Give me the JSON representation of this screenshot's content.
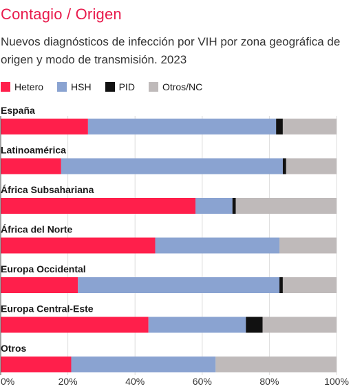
{
  "chart_data": {
    "type": "bar",
    "orientation": "horizontal",
    "stacked": true,
    "title": "Contagio / Origen",
    "subtitle": "Nuevos diagnósticos de infección por VIH por zona geográfica de origen y modo de transmisión. 2023",
    "categories": [
      "España",
      "Latinoamérica",
      "África Subsahariana",
      "África del Norte",
      "Europa Occidental",
      "Europa Central-Este",
      "Otros"
    ],
    "series": [
      {
        "name": "Hetero",
        "color": "#ff1f4b",
        "values": [
          26,
          18,
          58,
          46,
          23,
          44,
          21
        ]
      },
      {
        "name": "HSH",
        "color": "#8aa3d1",
        "values": [
          56,
          66,
          11,
          37,
          60,
          29,
          43
        ]
      },
      {
        "name": "PID",
        "color": "#111111",
        "values": [
          2,
          1,
          1,
          0,
          1,
          5,
          0
        ]
      },
      {
        "name": "Otros/NC",
        "color": "#bfbaba",
        "values": [
          16,
          15,
          30,
          17,
          16,
          22,
          36
        ]
      }
    ],
    "x_ticks": [
      "0%",
      "20%",
      "40%",
      "60%",
      "80%",
      "100%"
    ],
    "xlim": [
      0,
      100
    ],
    "legend_position": "top-left",
    "grid": true
  }
}
